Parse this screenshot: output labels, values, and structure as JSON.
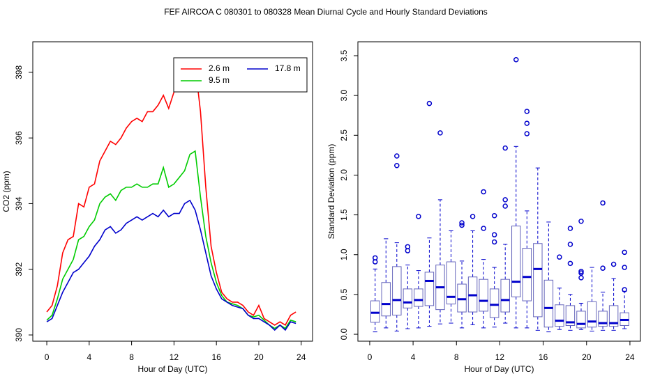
{
  "title": "FEF   AIRCOA C   080301 to 080328   Mean Diurnal Cycle and Hourly Standard Deviations",
  "chart_data": [
    {
      "type": "line",
      "x_label": "Hour of Day (UTC)",
      "y_label": "CO2 (ppm)",
      "xlim": [
        -1.32,
        25.07
      ],
      "ylim": [
        389.81,
        398.93
      ],
      "xticks": [
        0,
        4,
        8,
        12,
        16,
        20,
        24
      ],
      "yticks": [
        390,
        392,
        394,
        396,
        398
      ],
      "legend": "top-right",
      "x": [
        0,
        0.5,
        1,
        1.5,
        2,
        2.5,
        3,
        3.5,
        4,
        4.5,
        5,
        5.5,
        6,
        6.5,
        7,
        7.5,
        8,
        8.5,
        9,
        9.5,
        10,
        10.5,
        11,
        11.5,
        12,
        12.5,
        13,
        13.5,
        14,
        14.5,
        15,
        15.5,
        16,
        16.5,
        17,
        17.5,
        18,
        18.5,
        19,
        19.5,
        20,
        20.5,
        21,
        21.5,
        22,
        22.5,
        23,
        23.5
      ],
      "series": [
        {
          "name": "2.6 m",
          "color": "#ff0000",
          "values": [
            390.7,
            390.9,
            391.5,
            392.5,
            392.9,
            393.0,
            394.0,
            393.9,
            394.5,
            394.6,
            395.3,
            395.6,
            395.9,
            395.8,
            396.0,
            396.3,
            396.5,
            396.6,
            396.5,
            396.8,
            396.8,
            397.0,
            397.3,
            396.9,
            397.4,
            397.6,
            397.9,
            398.4,
            398.2,
            396.8,
            394.5,
            392.7,
            391.9,
            391.3,
            391.1,
            391.0,
            391.0,
            390.9,
            390.7,
            390.6,
            390.9,
            390.5,
            390.4,
            390.3,
            390.4,
            390.3,
            390.6,
            390.7
          ]
        },
        {
          "name": "9.5 m",
          "color": "#00cc00",
          "values": [
            390.45,
            390.6,
            391.1,
            391.7,
            392.0,
            392.3,
            392.9,
            393.0,
            393.3,
            393.5,
            394.0,
            394.2,
            394.3,
            394.1,
            394.4,
            394.5,
            394.5,
            394.6,
            394.5,
            394.5,
            394.6,
            394.6,
            395.1,
            394.5,
            394.6,
            394.8,
            395.0,
            395.5,
            395.6,
            394.2,
            393.0,
            392.2,
            391.6,
            391.2,
            391.0,
            390.95,
            390.9,
            390.8,
            390.6,
            390.55,
            390.6,
            390.45,
            390.3,
            390.2,
            390.3,
            390.2,
            390.45,
            390.4
          ]
        },
        {
          "name": "17.8 m",
          "color": "#0000cc",
          "values": [
            390.4,
            390.5,
            390.9,
            391.3,
            391.6,
            391.9,
            392.0,
            392.2,
            392.4,
            392.7,
            392.9,
            393.2,
            393.3,
            393.1,
            393.2,
            393.4,
            393.5,
            393.6,
            393.5,
            393.6,
            393.7,
            393.6,
            393.8,
            393.6,
            393.7,
            393.7,
            394.0,
            394.1,
            393.8,
            393.2,
            392.5,
            391.8,
            391.4,
            391.1,
            391.0,
            390.9,
            390.85,
            390.8,
            390.6,
            390.5,
            390.5,
            390.4,
            390.3,
            390.15,
            390.3,
            390.15,
            390.4,
            390.35
          ]
        }
      ]
    },
    {
      "type": "box",
      "x_label": "Hour of Day (UTC)",
      "y_label": "Standard Deviation (ppm)",
      "xlim": [
        -1.09,
        24.97
      ],
      "ylim": [
        -0.087,
        3.675
      ],
      "xticks": [
        0,
        4,
        8,
        12,
        16,
        20,
        24
      ],
      "yticks": [
        {
          "value": 0,
          "label": "0.0"
        },
        0.5,
        {
          "value": 1,
          "label": "1.0"
        },
        1.5,
        {
          "value": 2,
          "label": "2.0"
        },
        2.5,
        {
          "value": 3,
          "label": "3.0"
        },
        3.5
      ],
      "color": "#0000cc",
      "box_color": "#6666bb",
      "x": [
        0.5,
        1.5,
        2.5,
        3.5,
        4.5,
        5.5,
        6.5,
        7.5,
        8.5,
        9.5,
        10.5,
        11.5,
        12.5,
        13.5,
        14.5,
        15.5,
        16.5,
        17.5,
        18.5,
        19.5,
        20.5,
        21.5,
        22.5,
        23.5
      ],
      "boxes": [
        {
          "min": 0.03,
          "q1": 0.15,
          "median": 0.27,
          "q3": 0.42,
          "max": 0.82,
          "outliers": [
            0.91,
            0.96
          ]
        },
        {
          "min": 0.08,
          "q1": 0.23,
          "median": 0.38,
          "q3": 0.65,
          "max": 1.2,
          "outliers": []
        },
        {
          "min": 0.04,
          "q1": 0.24,
          "median": 0.43,
          "q3": 0.85,
          "max": 1.15,
          "outliers": [
            2.12,
            2.24
          ]
        },
        {
          "min": 0.07,
          "q1": 0.33,
          "median": 0.4,
          "q3": 0.57,
          "max": 0.87,
          "outliers": [
            1.05,
            1.1
          ]
        },
        {
          "min": 0.08,
          "q1": 0.35,
          "median": 0.43,
          "q3": 0.57,
          "max": 0.8,
          "outliers": [
            1.48
          ]
        },
        {
          "min": 0.1,
          "q1": 0.36,
          "median": 0.67,
          "q3": 0.78,
          "max": 1.21,
          "outliers": [
            2.9
          ]
        },
        {
          "min": 0.13,
          "q1": 0.31,
          "median": 0.59,
          "q3": 0.87,
          "max": 1.69,
          "outliers": [
            2.53
          ]
        },
        {
          "min": 0.14,
          "q1": 0.38,
          "median": 0.47,
          "q3": 0.91,
          "max": 1.3,
          "outliers": []
        },
        {
          "min": 0.08,
          "q1": 0.28,
          "median": 0.44,
          "q3": 0.63,
          "max": 0.92,
          "outliers": [
            1.37,
            1.4
          ]
        },
        {
          "min": 0.12,
          "q1": 0.28,
          "median": 0.49,
          "q3": 0.72,
          "max": 1.3,
          "outliers": [
            1.48
          ]
        },
        {
          "min": 0.08,
          "q1": 0.29,
          "median": 0.42,
          "q3": 0.69,
          "max": 0.94,
          "outliers": [
            1.33,
            1.79
          ]
        },
        {
          "min": 0.09,
          "q1": 0.21,
          "median": 0.37,
          "q3": 0.57,
          "max": 0.84,
          "outliers": [
            1.16,
            1.25,
            1.49
          ]
        },
        {
          "min": 0.14,
          "q1": 0.28,
          "median": 0.43,
          "q3": 0.69,
          "max": 1.13,
          "outliers": [
            1.61,
            1.69,
            2.34
          ]
        },
        {
          "min": 0.08,
          "q1": 0.47,
          "median": 0.66,
          "q3": 1.36,
          "max": 2.36,
          "outliers": [
            3.45
          ]
        },
        {
          "min": 0.08,
          "q1": 0.42,
          "median": 0.72,
          "q3": 1.08,
          "max": 1.55,
          "outliers": [
            2.52,
            2.65,
            2.8
          ]
        },
        {
          "min": 0.05,
          "q1": 0.22,
          "median": 0.82,
          "q3": 1.14,
          "max": 2.09,
          "outliers": []
        },
        {
          "min": 0.03,
          "q1": 0.09,
          "median": 0.33,
          "q3": 0.68,
          "max": 1.41,
          "outliers": []
        },
        {
          "min": 0.06,
          "q1": 0.1,
          "median": 0.17,
          "q3": 0.37,
          "max": 0.58,
          "outliers": [
            0.97
          ]
        },
        {
          "min": 0.05,
          "q1": 0.11,
          "median": 0.15,
          "q3": 0.36,
          "max": 0.5,
          "outliers": [
            0.89,
            1.13,
            1.33
          ]
        },
        {
          "min": 0.06,
          "q1": 0.08,
          "median": 0.13,
          "q3": 0.29,
          "max": 0.39,
          "outliers": [
            0.71,
            0.77,
            0.79,
            1.42
          ]
        },
        {
          "min": 0.04,
          "q1": 0.09,
          "median": 0.16,
          "q3": 0.41,
          "max": 0.84,
          "outliers": []
        },
        {
          "min": 0.05,
          "q1": 0.1,
          "median": 0.14,
          "q3": 0.29,
          "max": 0.53,
          "outliers": [
            0.83,
            1.65
          ]
        },
        {
          "min": 0.05,
          "q1": 0.1,
          "median": 0.14,
          "q3": 0.36,
          "max": 0.7,
          "outliers": [
            0.88
          ]
        },
        {
          "min": 0.07,
          "q1": 0.11,
          "median": 0.18,
          "q3": 0.27,
          "max": 0.54,
          "outliers": [
            0.56,
            0.84,
            1.03
          ]
        }
      ]
    }
  ]
}
